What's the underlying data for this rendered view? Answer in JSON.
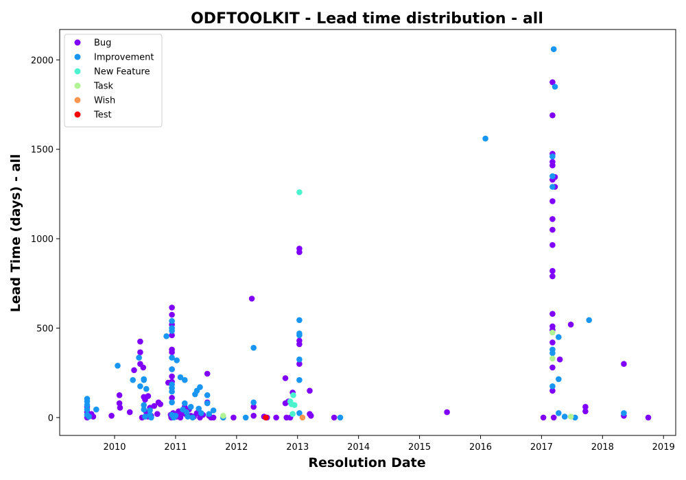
{
  "chart_data": {
    "type": "scatter",
    "title": "ODFTOOLKIT - Lead time distribution - all",
    "xlabel": "Resolution Date",
    "ylabel": "Lead Time (days) - all",
    "xlim": [
      2009.1,
      2019.2
    ],
    "ylim": [
      -100,
      2170
    ],
    "xticks": [
      2010,
      2011,
      2012,
      2013,
      2014,
      2015,
      2016,
      2017,
      2018,
      2019
    ],
    "yticks": [
      0,
      500,
      1000,
      1500,
      2000
    ],
    "grid": false,
    "legend_position": "top-left",
    "series": [
      {
        "name": "Bug",
        "color": "#8000ff",
        "points": [
          [
            2009.55,
            0
          ],
          [
            2009.55,
            30
          ],
          [
            2009.55,
            60
          ],
          [
            2009.58,
            10
          ],
          [
            2009.62,
            20
          ],
          [
            2009.65,
            5
          ],
          [
            2009.95,
            10
          ],
          [
            2010.08,
            125
          ],
          [
            2010.08,
            80
          ],
          [
            2010.09,
            55
          ],
          [
            2010.25,
            30
          ],
          [
            2010.32,
            265
          ],
          [
            2010.42,
            425
          ],
          [
            2010.42,
            365
          ],
          [
            2010.42,
            300
          ],
          [
            2010.45,
            0
          ],
          [
            2010.47,
            280
          ],
          [
            2010.48,
            115
          ],
          [
            2010.5,
            100
          ],
          [
            2010.52,
            30
          ],
          [
            2010.55,
            120
          ],
          [
            2010.55,
            5
          ],
          [
            2010.58,
            55
          ],
          [
            2010.6,
            10
          ],
          [
            2010.65,
            65
          ],
          [
            2010.7,
            20
          ],
          [
            2010.72,
            85
          ],
          [
            2010.75,
            75
          ],
          [
            2010.88,
            195
          ],
          [
            2010.92,
            15
          ],
          [
            2010.93,
            0
          ],
          [
            2010.94,
            615
          ],
          [
            2010.94,
            575
          ],
          [
            2010.94,
            520
          ],
          [
            2010.94,
            460
          ],
          [
            2010.94,
            380
          ],
          [
            2010.94,
            365
          ],
          [
            2010.94,
            270
          ],
          [
            2010.94,
            230
          ],
          [
            2010.94,
            200
          ],
          [
            2010.94,
            110
          ],
          [
            2010.94,
            5
          ],
          [
            2010.96,
            25
          ],
          [
            2010.98,
            10
          ],
          [
            2011.0,
            15
          ],
          [
            2011.02,
            5
          ],
          [
            2011.05,
            35
          ],
          [
            2011.08,
            0
          ],
          [
            2011.1,
            20
          ],
          [
            2011.15,
            60
          ],
          [
            2011.18,
            15
          ],
          [
            2011.22,
            45
          ],
          [
            2011.25,
            10
          ],
          [
            2011.3,
            5
          ],
          [
            2011.35,
            25
          ],
          [
            2011.4,
            0
          ],
          [
            2011.45,
            15
          ],
          [
            2011.52,
            245
          ],
          [
            2011.52,
            85
          ],
          [
            2011.55,
            10
          ],
          [
            2011.58,
            0
          ],
          [
            2011.62,
            0
          ],
          [
            2011.95,
            0
          ],
          [
            2012.25,
            665
          ],
          [
            2012.28,
            60
          ],
          [
            2012.28,
            10
          ],
          [
            2012.45,
            5
          ],
          [
            2012.5,
            0
          ],
          [
            2012.65,
            0
          ],
          [
            2012.8,
            220
          ],
          [
            2012.8,
            80
          ],
          [
            2012.82,
            0
          ],
          [
            2012.85,
            90
          ],
          [
            2012.88,
            0
          ],
          [
            2012.92,
            140
          ],
          [
            2013.03,
            945
          ],
          [
            2013.03,
            925
          ],
          [
            2013.03,
            430
          ],
          [
            2013.03,
            410
          ],
          [
            2013.03,
            300
          ],
          [
            2013.2,
            150
          ],
          [
            2013.2,
            20
          ],
          [
            2013.22,
            10
          ],
          [
            2013.6,
            0
          ],
          [
            2015.45,
            30
          ],
          [
            2017.03,
            0
          ],
          [
            2017.18,
            1875
          ],
          [
            2017.18,
            1690
          ],
          [
            2017.18,
            1475
          ],
          [
            2017.18,
            1430
          ],
          [
            2017.18,
            1410
          ],
          [
            2017.18,
            1330
          ],
          [
            2017.18,
            1210
          ],
          [
            2017.18,
            1110
          ],
          [
            2017.18,
            1050
          ],
          [
            2017.18,
            965
          ],
          [
            2017.18,
            820
          ],
          [
            2017.18,
            790
          ],
          [
            2017.18,
            580
          ],
          [
            2017.18,
            510
          ],
          [
            2017.18,
            490
          ],
          [
            2017.18,
            420
          ],
          [
            2017.18,
            280
          ],
          [
            2017.18,
            150
          ],
          [
            2017.2,
            0
          ],
          [
            2017.22,
            1290
          ],
          [
            2017.22,
            1345
          ],
          [
            2017.3,
            325
          ],
          [
            2017.48,
            520
          ],
          [
            2017.72,
            60
          ],
          [
            2017.72,
            35
          ],
          [
            2018.35,
            300
          ],
          [
            2018.35,
            10
          ],
          [
            2018.75,
            0
          ]
        ]
      },
      {
        "name": "Improvement",
        "color": "#1996f3",
        "points": [
          [
            2009.55,
            105
          ],
          [
            2009.55,
            90
          ],
          [
            2009.55,
            70
          ],
          [
            2009.55,
            45
          ],
          [
            2009.55,
            15
          ],
          [
            2009.58,
            5
          ],
          [
            2009.7,
            45
          ],
          [
            2010.05,
            290
          ],
          [
            2010.3,
            210
          ],
          [
            2010.4,
            335
          ],
          [
            2010.42,
            175
          ],
          [
            2010.48,
            215
          ],
          [
            2010.48,
            210
          ],
          [
            2010.48,
            70
          ],
          [
            2010.48,
            45
          ],
          [
            2010.5,
            5
          ],
          [
            2010.52,
            160
          ],
          [
            2010.58,
            40
          ],
          [
            2010.58,
            15
          ],
          [
            2010.6,
            0
          ],
          [
            2010.85,
            455
          ],
          [
            2010.94,
            540
          ],
          [
            2010.94,
            500
          ],
          [
            2010.94,
            485
          ],
          [
            2010.94,
            335
          ],
          [
            2010.94,
            270
          ],
          [
            2010.94,
            185
          ],
          [
            2010.94,
            165
          ],
          [
            2010.94,
            145
          ],
          [
            2010.94,
            85
          ],
          [
            2010.94,
            15
          ],
          [
            2010.97,
            0
          ],
          [
            2011.0,
            10
          ],
          [
            2011.02,
            320
          ],
          [
            2011.08,
            225
          ],
          [
            2011.12,
            45
          ],
          [
            2011.15,
            210
          ],
          [
            2011.15,
            80
          ],
          [
            2011.18,
            30
          ],
          [
            2011.2,
            5
          ],
          [
            2011.25,
            60
          ],
          [
            2011.28,
            0
          ],
          [
            2011.32,
            130
          ],
          [
            2011.35,
            150
          ],
          [
            2011.38,
            50
          ],
          [
            2011.4,
            170
          ],
          [
            2011.42,
            25
          ],
          [
            2011.52,
            125
          ],
          [
            2011.52,
            80
          ],
          [
            2011.55,
            20
          ],
          [
            2011.62,
            40
          ],
          [
            2011.78,
            0
          ],
          [
            2012.15,
            0
          ],
          [
            2012.28,
            390
          ],
          [
            2012.28,
            85
          ],
          [
            2013.03,
            545
          ],
          [
            2013.03,
            470
          ],
          [
            2013.03,
            460
          ],
          [
            2013.03,
            325
          ],
          [
            2013.03,
            210
          ],
          [
            2013.03,
            25
          ],
          [
            2013.7,
            0
          ],
          [
            2016.08,
            1560
          ],
          [
            2017.18,
            1460
          ],
          [
            2017.18,
            1350
          ],
          [
            2017.18,
            1290
          ],
          [
            2017.18,
            380
          ],
          [
            2017.18,
            360
          ],
          [
            2017.18,
            175
          ],
          [
            2017.2,
            2060
          ],
          [
            2017.22,
            1850
          ],
          [
            2017.28,
            450
          ],
          [
            2017.28,
            215
          ],
          [
            2017.28,
            25
          ],
          [
            2017.38,
            5
          ],
          [
            2017.55,
            0
          ],
          [
            2017.78,
            545
          ],
          [
            2018.35,
            25
          ]
        ]
      },
      {
        "name": "New Feature",
        "color": "#4cf2ce",
        "points": [
          [
            2012.88,
            90
          ],
          [
            2012.9,
            75
          ],
          [
            2012.93,
            125
          ],
          [
            2012.95,
            70
          ],
          [
            2012.92,
            20
          ],
          [
            2013.03,
            1260
          ]
        ]
      },
      {
        "name": "Task",
        "color": "#b2f396",
        "points": [
          [
            2011.78,
            10
          ],
          [
            2017.18,
            475
          ],
          [
            2017.18,
            330
          ],
          [
            2017.48,
            5
          ]
        ]
      },
      {
        "name": "Wish",
        "color": "#ff964f",
        "points": [
          [
            2013.08,
            0
          ]
        ]
      },
      {
        "name": "Test",
        "color": "#ff0000",
        "points": [
          [
            2012.48,
            0
          ]
        ]
      }
    ]
  }
}
